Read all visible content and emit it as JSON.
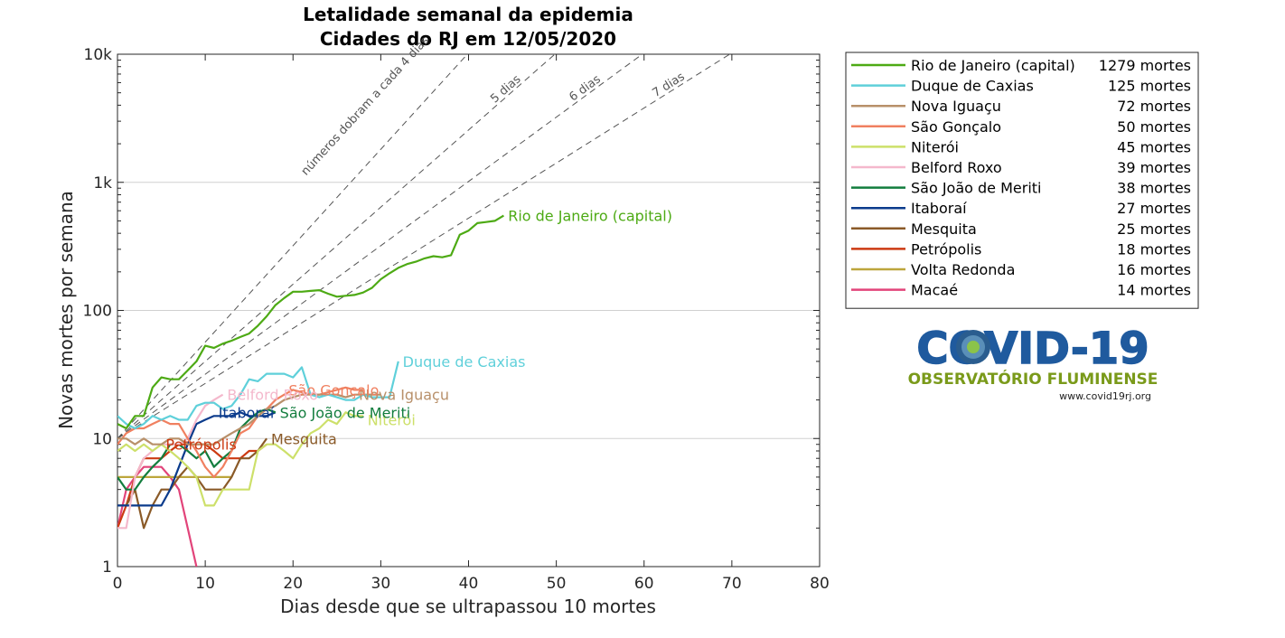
{
  "chart_data": {
    "type": "line",
    "title": "Letalidade semanal da epidemia",
    "subtitle": "Cidades do RJ em 12/05/2020",
    "xlabel": "Dias desde que se ultrapassou 10 mortes",
    "ylabel": "Novas mortes por semana",
    "xlim": [
      0,
      80
    ],
    "ylim": [
      1,
      10000
    ],
    "yscale": "log",
    "xticks": [
      "0",
      "10",
      "20",
      "30",
      "40",
      "50",
      "60",
      "70",
      "80"
    ],
    "yticks": [
      "1",
      "10",
      "100",
      "1k",
      "10k"
    ],
    "grid": "horizontal",
    "legend_position": "right",
    "doubling_lines": {
      "start": [
        0,
        10
      ],
      "labels": [
        {
          "days": 4,
          "text": "números dobram a cada 4 dias"
        },
        {
          "days": 5,
          "text": "5 dias"
        },
        {
          "days": 6,
          "text": "6 dias"
        },
        {
          "days": 7,
          "text": "7 dias"
        }
      ]
    },
    "series": [
      {
        "name": "Rio de Janeiro (capital)",
        "total": "1279 mortes",
        "color": "#4daa14",
        "x": [
          0,
          1,
          2,
          3,
          4,
          5,
          6,
          7,
          8,
          9,
          10,
          11,
          12,
          13,
          14,
          15,
          16,
          17,
          18,
          19,
          20,
          21,
          22,
          23,
          24,
          25,
          26,
          27,
          28,
          29,
          30,
          31,
          32,
          33,
          34,
          35,
          36,
          37,
          38,
          39,
          40,
          41,
          42,
          43,
          44
        ],
        "y": [
          13,
          12,
          15,
          15,
          25,
          30,
          29,
          29,
          34,
          40,
          53,
          51,
          55,
          58,
          62,
          66,
          76,
          90,
          110,
          125,
          140,
          140,
          142,
          144,
          135,
          128,
          130,
          132,
          138,
          150,
          175,
          195,
          215,
          230,
          240,
          255,
          265,
          260,
          270,
          390,
          420,
          480,
          490,
          500,
          550
        ]
      },
      {
        "name": "Duque de Caxias",
        "total": "125 mortes",
        "color": "#5fd0da",
        "x": [
          0,
          1,
          2,
          3,
          4,
          5,
          6,
          7,
          8,
          9,
          10,
          11,
          12,
          13,
          14,
          15,
          16,
          17,
          18,
          19,
          20,
          21,
          22,
          23,
          24,
          25,
          26,
          27,
          28,
          29,
          30,
          31,
          32
        ],
        "y": [
          15,
          13,
          12,
          13,
          15,
          14,
          15,
          14,
          14,
          18,
          19,
          19,
          17,
          18,
          22,
          29,
          28,
          32,
          32,
          32,
          30,
          36,
          22,
          21,
          22,
          21,
          20,
          20,
          22,
          21,
          21,
          21,
          40
        ]
      },
      {
        "name": "Nova Iguaçu",
        "total": "72 mortes",
        "color": "#b8906a",
        "x": [
          0,
          1,
          2,
          3,
          4,
          5,
          6,
          7,
          8,
          9,
          10,
          11,
          12,
          13,
          14,
          15,
          16,
          17,
          18,
          19,
          20,
          21,
          22,
          23,
          24,
          25,
          26,
          27,
          28,
          29,
          30
        ],
        "y": [
          10,
          10,
          9,
          10,
          9,
          9,
          10,
          10,
          9,
          9,
          9,
          9,
          10,
          11,
          12,
          13,
          15,
          17,
          18,
          20,
          21,
          22,
          22,
          22,
          22,
          22,
          21,
          22,
          22,
          22,
          22
        ]
      },
      {
        "name": "São Gonçalo",
        "total": "50 mortes",
        "color": "#f08060",
        "x": [
          0,
          1,
          2,
          3,
          4,
          5,
          6,
          7,
          8,
          9,
          10,
          11,
          12,
          13,
          14,
          15,
          16,
          17,
          18,
          19,
          20,
          21,
          22,
          23,
          24,
          25,
          26,
          27,
          28
        ],
        "y": [
          9,
          11,
          12,
          12,
          13,
          14,
          13,
          13,
          10,
          8,
          6,
          5,
          6,
          8,
          11,
          12,
          15,
          17,
          20,
          22,
          24,
          23,
          22,
          22,
          23,
          24,
          25,
          24,
          24
        ]
      },
      {
        "name": "Niterói",
        "total": "45 mortes",
        "color": "#cde06a",
        "x": [
          0,
          1,
          2,
          3,
          4,
          5,
          6,
          7,
          8,
          9,
          10,
          11,
          12,
          13,
          14,
          15,
          16,
          17,
          18,
          19,
          20,
          21,
          22,
          23,
          24,
          25,
          26,
          27,
          28
        ],
        "y": [
          8,
          9,
          8,
          9,
          8,
          9,
          8,
          7,
          6,
          5,
          3,
          3,
          4,
          4,
          4,
          4,
          8,
          9,
          9,
          8,
          7,
          9,
          11,
          12,
          14,
          13,
          16,
          15,
          15
        ]
      },
      {
        "name": "Belford Roxo",
        "total": "39 mortes",
        "color": "#f4b8cc",
        "x": [
          0,
          1,
          2,
          3,
          4,
          5,
          6,
          7,
          8,
          9,
          10,
          11,
          12
        ],
        "y": [
          2,
          2,
          5,
          7,
          8,
          9,
          9,
          9,
          10,
          14,
          18,
          20,
          22
        ]
      },
      {
        "name": "São João de Meriti",
        "total": "38 mortes",
        "color": "#137d3e",
        "x": [
          0,
          1,
          2,
          3,
          4,
          5,
          6,
          7,
          8,
          9,
          10,
          11,
          12,
          13,
          14,
          15,
          16,
          17,
          18
        ],
        "y": [
          5,
          4,
          4,
          5,
          6,
          7,
          9,
          9,
          8,
          7,
          8,
          6,
          7,
          8,
          12,
          14,
          16,
          17,
          16
        ]
      },
      {
        "name": "Itaboraí",
        "total": "27 mortes",
        "color": "#0b3b8c",
        "x": [
          0,
          1,
          2,
          3,
          4,
          5,
          6,
          7,
          8,
          9,
          10,
          11,
          12,
          13,
          14,
          15,
          16,
          17,
          18
        ],
        "y": [
          3,
          3,
          3,
          3,
          3,
          3,
          4,
          6,
          9,
          13,
          14,
          15,
          15,
          15,
          16,
          15,
          15,
          15,
          16
        ]
      },
      {
        "name": "Mesquita",
        "total": "25 mortes",
        "color": "#8a5a28",
        "x": [
          0,
          1,
          2,
          3,
          4,
          5,
          6,
          7,
          8,
          9,
          10,
          11,
          12,
          13,
          14,
          15,
          16,
          17
        ],
        "y": [
          3,
          3,
          4,
          2,
          3,
          4,
          4,
          5,
          6,
          5,
          4,
          4,
          4,
          5,
          7,
          7,
          8,
          10
        ]
      },
      {
        "name": "Petrópolis",
        "total": "18 mortes",
        "color": "#cc3a12",
        "x": [
          0,
          1,
          2,
          3,
          4,
          5,
          6,
          7,
          8,
          9,
          10,
          11,
          12,
          13,
          14,
          15,
          16,
          17
        ],
        "y": [
          2,
          3,
          5,
          7,
          7,
          7,
          8,
          9,
          9,
          9,
          9,
          8,
          7,
          7,
          7,
          8,
          8,
          9
        ]
      },
      {
        "name": "Volta Redonda",
        "total": "16 mortes",
        "color": "#bda63c",
        "x": [
          0,
          13
        ],
        "y": [
          5,
          5
        ]
      },
      {
        "name": "Macaé",
        "total": "14 mortes",
        "color": "#e2447a",
        "x": [
          0,
          1,
          2,
          3,
          4,
          5,
          6,
          7,
          8,
          9
        ],
        "y": [
          2,
          4,
          5,
          6,
          6,
          6,
          5,
          4,
          2,
          1
        ]
      }
    ],
    "end_labels": [
      {
        "text": "Rio de Janeiro (capital)",
        "color": "#4daa14",
        "x": 44.5,
        "y": 550
      },
      {
        "text": "Duque de Caxias",
        "color": "#5fd0da",
        "x": 32.5,
        "y": 40
      },
      {
        "text": "Nova Iguaçu",
        "color": "#b8906a",
        "x": 27.5,
        "y": 22
      },
      {
        "text": "São Gonçalo",
        "color": "#f08060",
        "x": 19.5,
        "y": 24
      },
      {
        "text": "Niterói",
        "color": "#cde06a",
        "x": 28.5,
        "y": 14
      },
      {
        "text": "Belford Roxo",
        "color": "#f4b8cc",
        "x": 12.5,
        "y": 22
      },
      {
        "text": "São João de Meriti",
        "color": "#137d3e",
        "x": 18.5,
        "y": 16
      },
      {
        "text": "Itaboraí",
        "color": "#0b3b8c",
        "x": 11.5,
        "y": 16
      },
      {
        "text": "Mesquita",
        "color": "#8a5a28",
        "x": 17.5,
        "y": 10
      },
      {
        "text": "Petrópolis",
        "color": "#cc3a12",
        "x": 5.5,
        "y": 9
      }
    ]
  },
  "logo": {
    "word": "COVID-19",
    "subtitle": "OBSERVATÓRIO FLUMINENSE",
    "url": "www.covid19rj.org",
    "colors": {
      "blue": "#1f5a9e",
      "green": "#7a9a1a"
    }
  }
}
